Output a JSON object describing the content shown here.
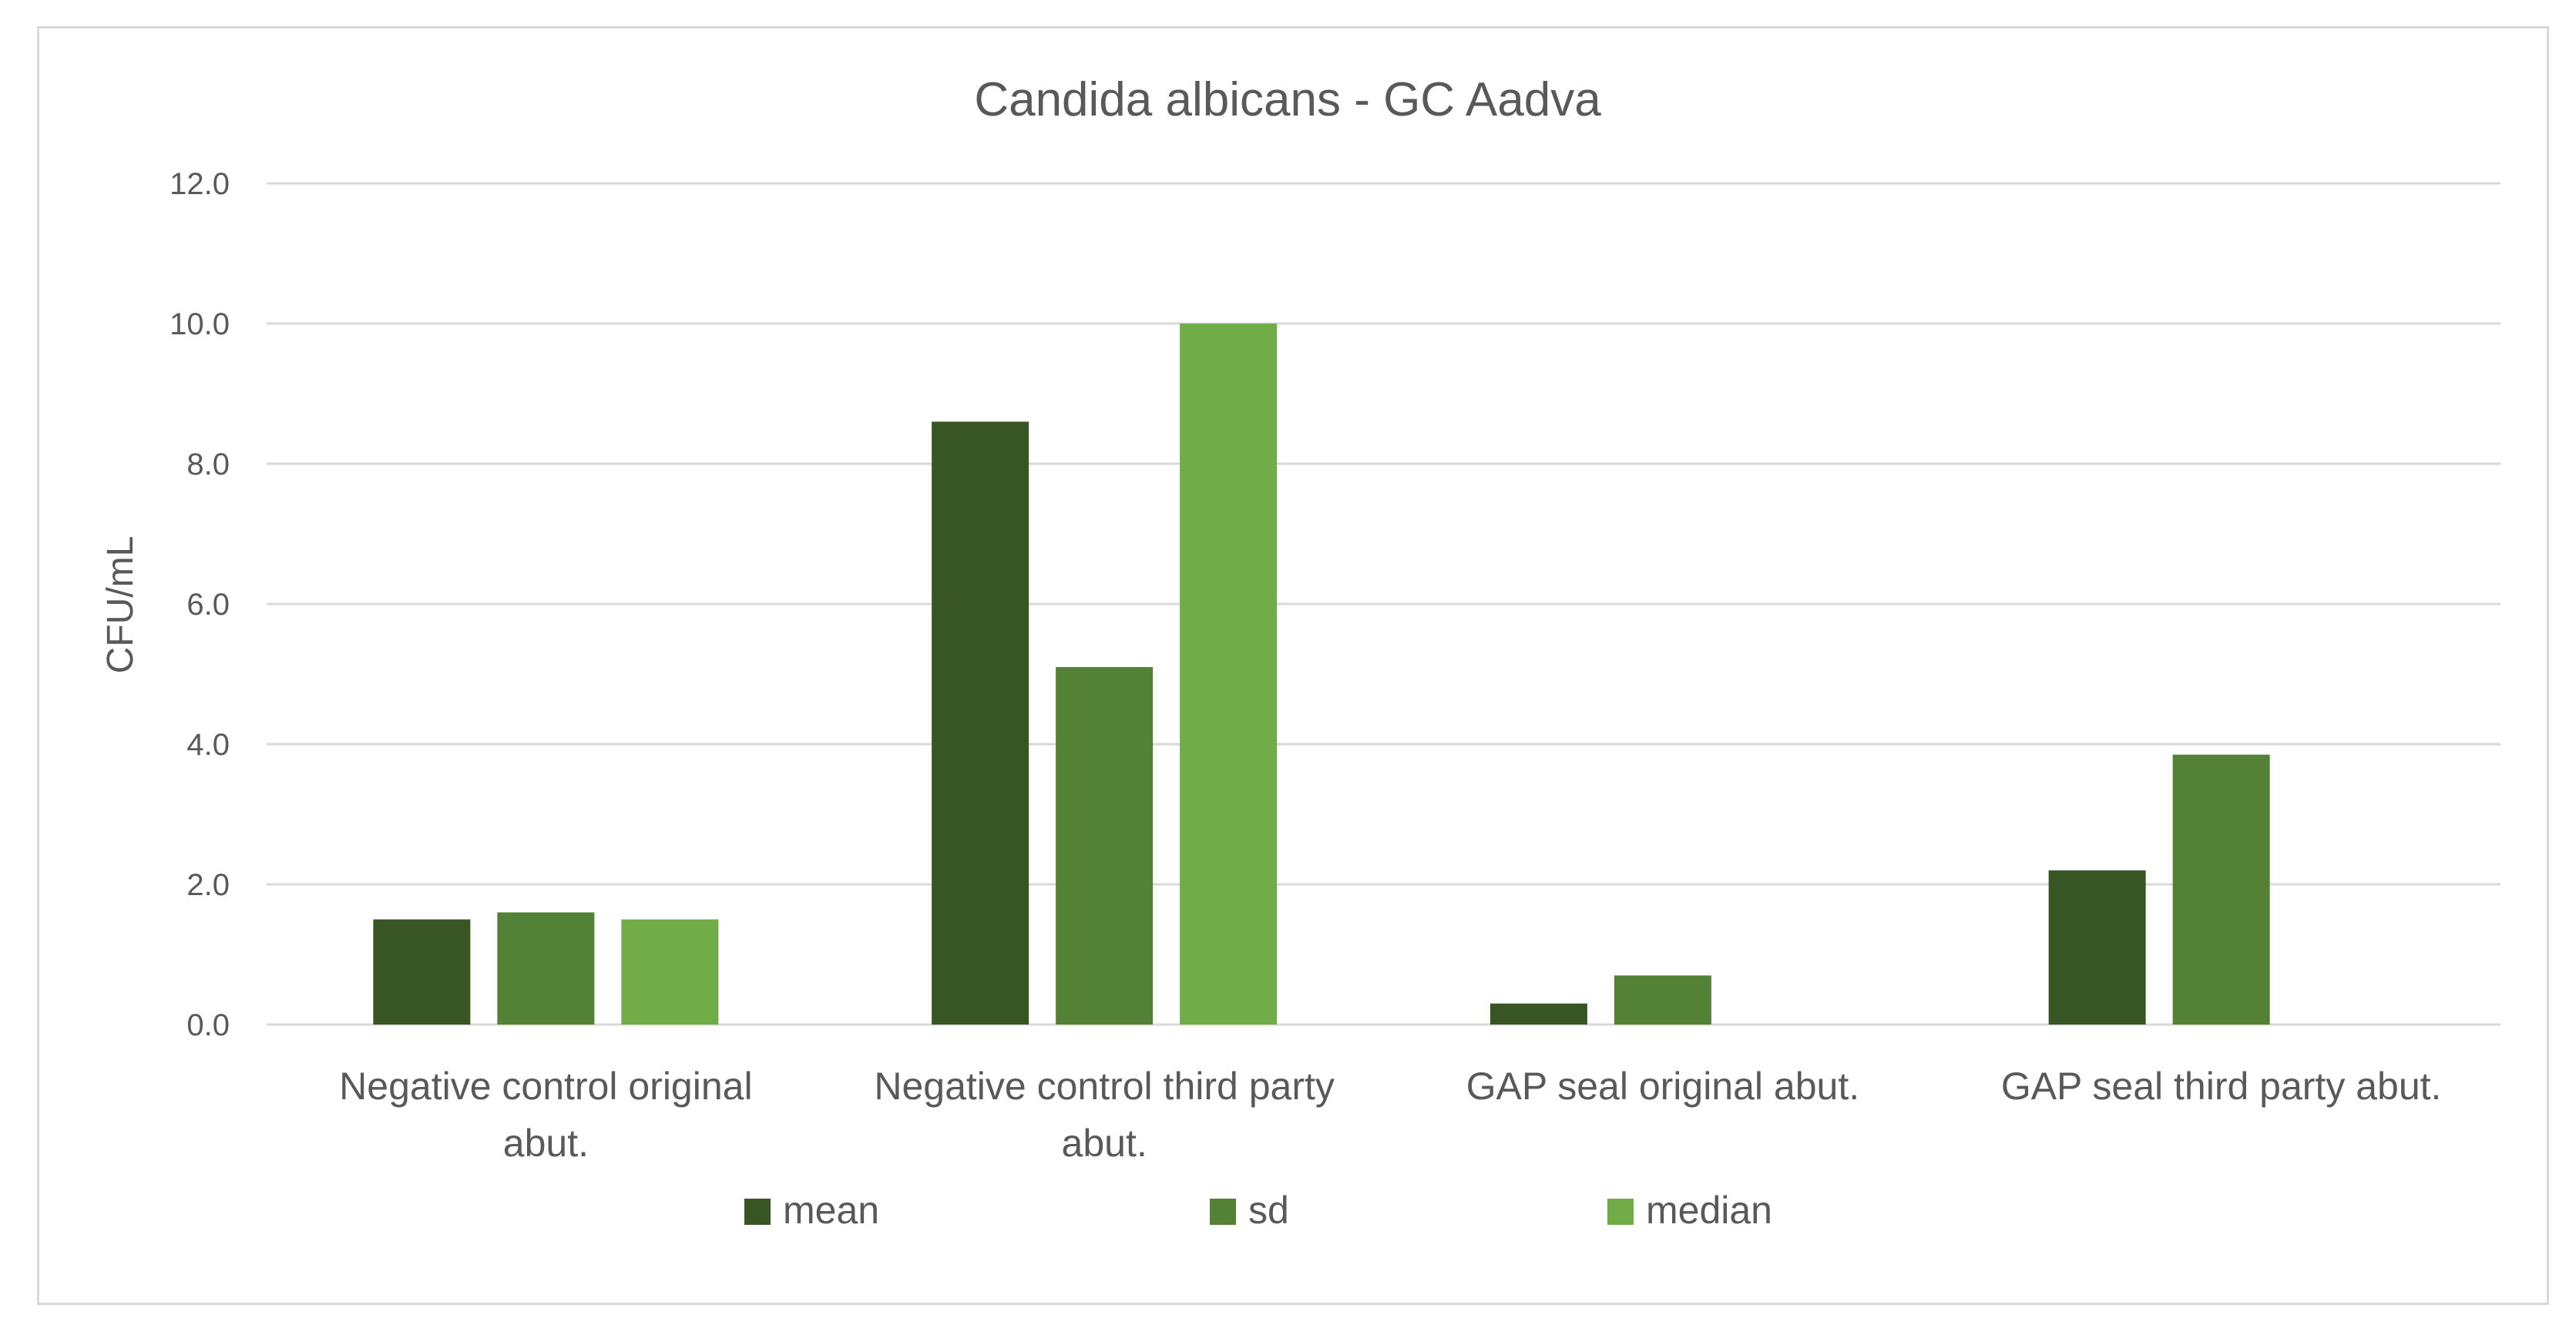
{
  "chart_data": {
    "type": "bar",
    "title": "Candida albicans -  GC Aadva",
    "xlabel": "",
    "ylabel": "CFU/mL",
    "ylim": [
      0,
      12
    ],
    "yticks": [
      "0.0",
      "2.0",
      "4.0",
      "6.0",
      "8.0",
      "10.0",
      "12.0"
    ],
    "grid": true,
    "legend_position": "bottom",
    "categories": [
      [
        "Negative control original",
        "abut."
      ],
      [
        "Negative control third party",
        "abut."
      ],
      [
        "GAP seal original abut."
      ],
      [
        "GAP seal third party abut."
      ]
    ],
    "series": [
      {
        "name": "mean",
        "color": "#375623",
        "values": [
          1.5,
          8.6,
          0.3,
          2.2
        ]
      },
      {
        "name": "sd",
        "color": "#538135",
        "values": [
          1.6,
          5.1,
          0.7,
          3.85
        ]
      },
      {
        "name": "median",
        "color": "#70ad47",
        "values": [
          1.5,
          10.0,
          null,
          null
        ]
      }
    ],
    "colors": {
      "grid": "#d9d9d9",
      "text": "#595959",
      "frame": "#d9d9d9"
    }
  }
}
